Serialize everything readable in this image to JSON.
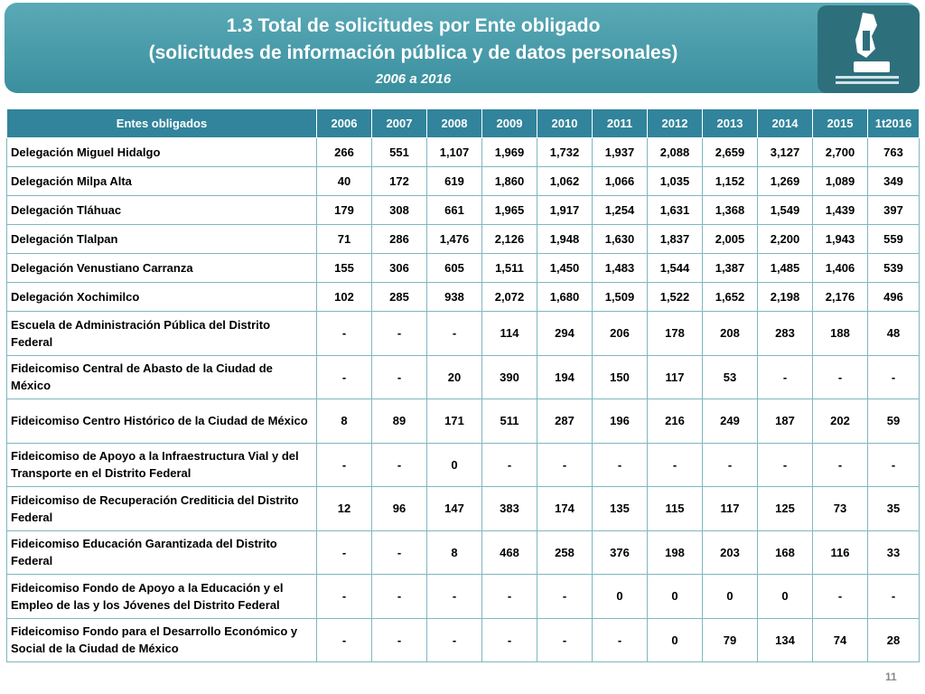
{
  "header": {
    "title": "1.3 Total de solicitudes por Ente obligado",
    "subtitle": "(solicitudes de información pública y de datos personales)",
    "period": "2006 a 2016"
  },
  "table": {
    "columns": [
      "Entes obligados",
      "2006",
      "2007",
      "2008",
      "2009",
      "2010",
      "2011",
      "2012",
      "2013",
      "2014",
      "2015",
      "1t2016"
    ],
    "rows": [
      [
        "Delegación Miguel Hidalgo",
        "266",
        "551",
        "1,107",
        "1,969",
        "1,732",
        "1,937",
        "2,088",
        "2,659",
        "3,127",
        "2,700",
        "763"
      ],
      [
        "Delegación Milpa Alta",
        "40",
        "172",
        "619",
        "1,860",
        "1,062",
        "1,066",
        "1,035",
        "1,152",
        "1,269",
        "1,089",
        "349"
      ],
      [
        "Delegación Tláhuac",
        "179",
        "308",
        "661",
        "1,965",
        "1,917",
        "1,254",
        "1,631",
        "1,368",
        "1,549",
        "1,439",
        "397"
      ],
      [
        "Delegación Tlalpan",
        "71",
        "286",
        "1,476",
        "2,126",
        "1,948",
        "1,630",
        "1,837",
        "2,005",
        "2,200",
        "1,943",
        "559"
      ],
      [
        "Delegación Venustiano Carranza",
        "155",
        "306",
        "605",
        "1,511",
        "1,450",
        "1,483",
        "1,544",
        "1,387",
        "1,485",
        "1,406",
        "539"
      ],
      [
        "Delegación Xochimilco",
        "102",
        "285",
        "938",
        "2,072",
        "1,680",
        "1,509",
        "1,522",
        "1,652",
        "2,198",
        "2,176",
        "496"
      ],
      [
        "Escuela de Administración Pública del Distrito Federal",
        "-",
        "-",
        "-",
        "114",
        "294",
        "206",
        "178",
        "208",
        "283",
        "188",
        "48"
      ],
      [
        "Fideicomiso Central de Abasto de la Ciudad de México",
        "-",
        "-",
        "20",
        "390",
        "194",
        "150",
        "117",
        "53",
        "-",
        "-",
        "-"
      ],
      [
        "Fideicomiso Centro Histórico de la Ciudad de México",
        "8",
        "89",
        "171",
        "511",
        "287",
        "196",
        "216",
        "249",
        "187",
        "202",
        "59"
      ],
      [
        "Fideicomiso de Apoyo a la Infraestructura Vial y del Transporte en el Distrito Federal",
        "-",
        "-",
        "0",
        "-",
        "-",
        "-",
        "-",
        "-",
        "-",
        "-",
        "-"
      ],
      [
        "Fideicomiso de Recuperación Crediticia del Distrito Federal",
        "12",
        "96",
        "147",
        "383",
        "174",
        "135",
        "115",
        "117",
        "125",
        "73",
        "35"
      ],
      [
        "Fideicomiso Educación Garantizada del Distrito Federal",
        "-",
        "-",
        "8",
        "468",
        "258",
        "376",
        "198",
        "203",
        "168",
        "116",
        "33"
      ],
      [
        "Fideicomiso Fondo de Apoyo a la Educación y el Empleo de las y los Jóvenes del Distrito Federal",
        "-",
        "-",
        "-",
        "-",
        "-",
        "0",
        "0",
        "0",
        "0",
        "-",
        "-"
      ],
      [
        "Fideicomiso Fondo para el Desarrollo Económico y Social de la Ciudad de México",
        "-",
        "-",
        "-",
        "-",
        "-",
        "-",
        "0",
        "79",
        "134",
        "74",
        "28"
      ]
    ]
  },
  "footer": {
    "page": "11"
  }
}
